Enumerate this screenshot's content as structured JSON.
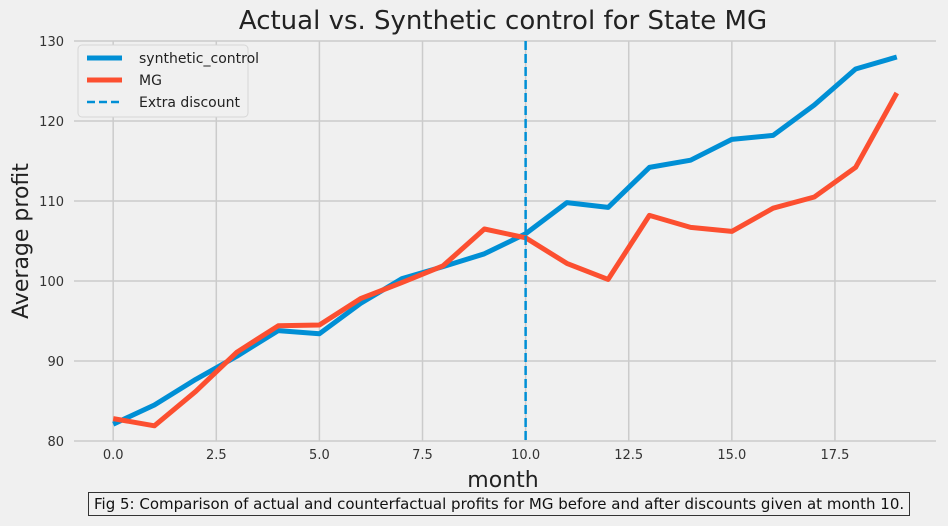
{
  "chart_data": {
    "type": "line",
    "title": "Actual vs. Synthetic control for State MG",
    "xlabel": "month",
    "ylabel": "Average profit",
    "xlim": [
      -0.95,
      19.95
    ],
    "ylim": [
      80,
      130
    ],
    "xticks": [
      0.0,
      2.5,
      5.0,
      7.5,
      10.0,
      12.5,
      15.0,
      17.5
    ],
    "xtick_labels": [
      "0.0",
      "2.5",
      "5.0",
      "7.5",
      "10.0",
      "12.5",
      "15.0",
      "17.5"
    ],
    "yticks": [
      80,
      90,
      100,
      110,
      120,
      130
    ],
    "ytick_labels": [
      "80",
      "90",
      "100",
      "110",
      "120",
      "130"
    ],
    "grid": true,
    "legend_position": "top-left",
    "x": [
      0,
      1,
      2,
      3,
      4,
      5,
      6,
      7,
      8,
      9,
      10,
      11,
      12,
      13,
      14,
      15,
      16,
      17,
      18,
      19
    ],
    "series": [
      {
        "name": "synthetic_control",
        "color": "#008fd5",
        "values": [
          82.1,
          84.5,
          87.7,
          90.6,
          93.8,
          93.4,
          97.2,
          100.3,
          101.8,
          103.4,
          105.9,
          109.8,
          109.2,
          114.2,
          115.1,
          117.7,
          118.2,
          122.0,
          126.5,
          128.0
        ]
      },
      {
        "name": "MG",
        "color": "#fc4f30",
        "values": [
          82.8,
          81.9,
          86.2,
          91.1,
          94.4,
          94.5,
          97.8,
          99.8,
          101.9,
          106.5,
          105.4,
          102.2,
          100.2,
          108.2,
          106.7,
          106.2,
          109.1,
          110.5,
          114.2,
          123.5
        ]
      }
    ],
    "vline": {
      "x": 10,
      "name": "Extra discount",
      "color": "#008fd5",
      "style": "dashed"
    }
  },
  "caption": "Fig 5: Comparison of actual and counterfactual profits for MG before and after discounts given at month 10."
}
